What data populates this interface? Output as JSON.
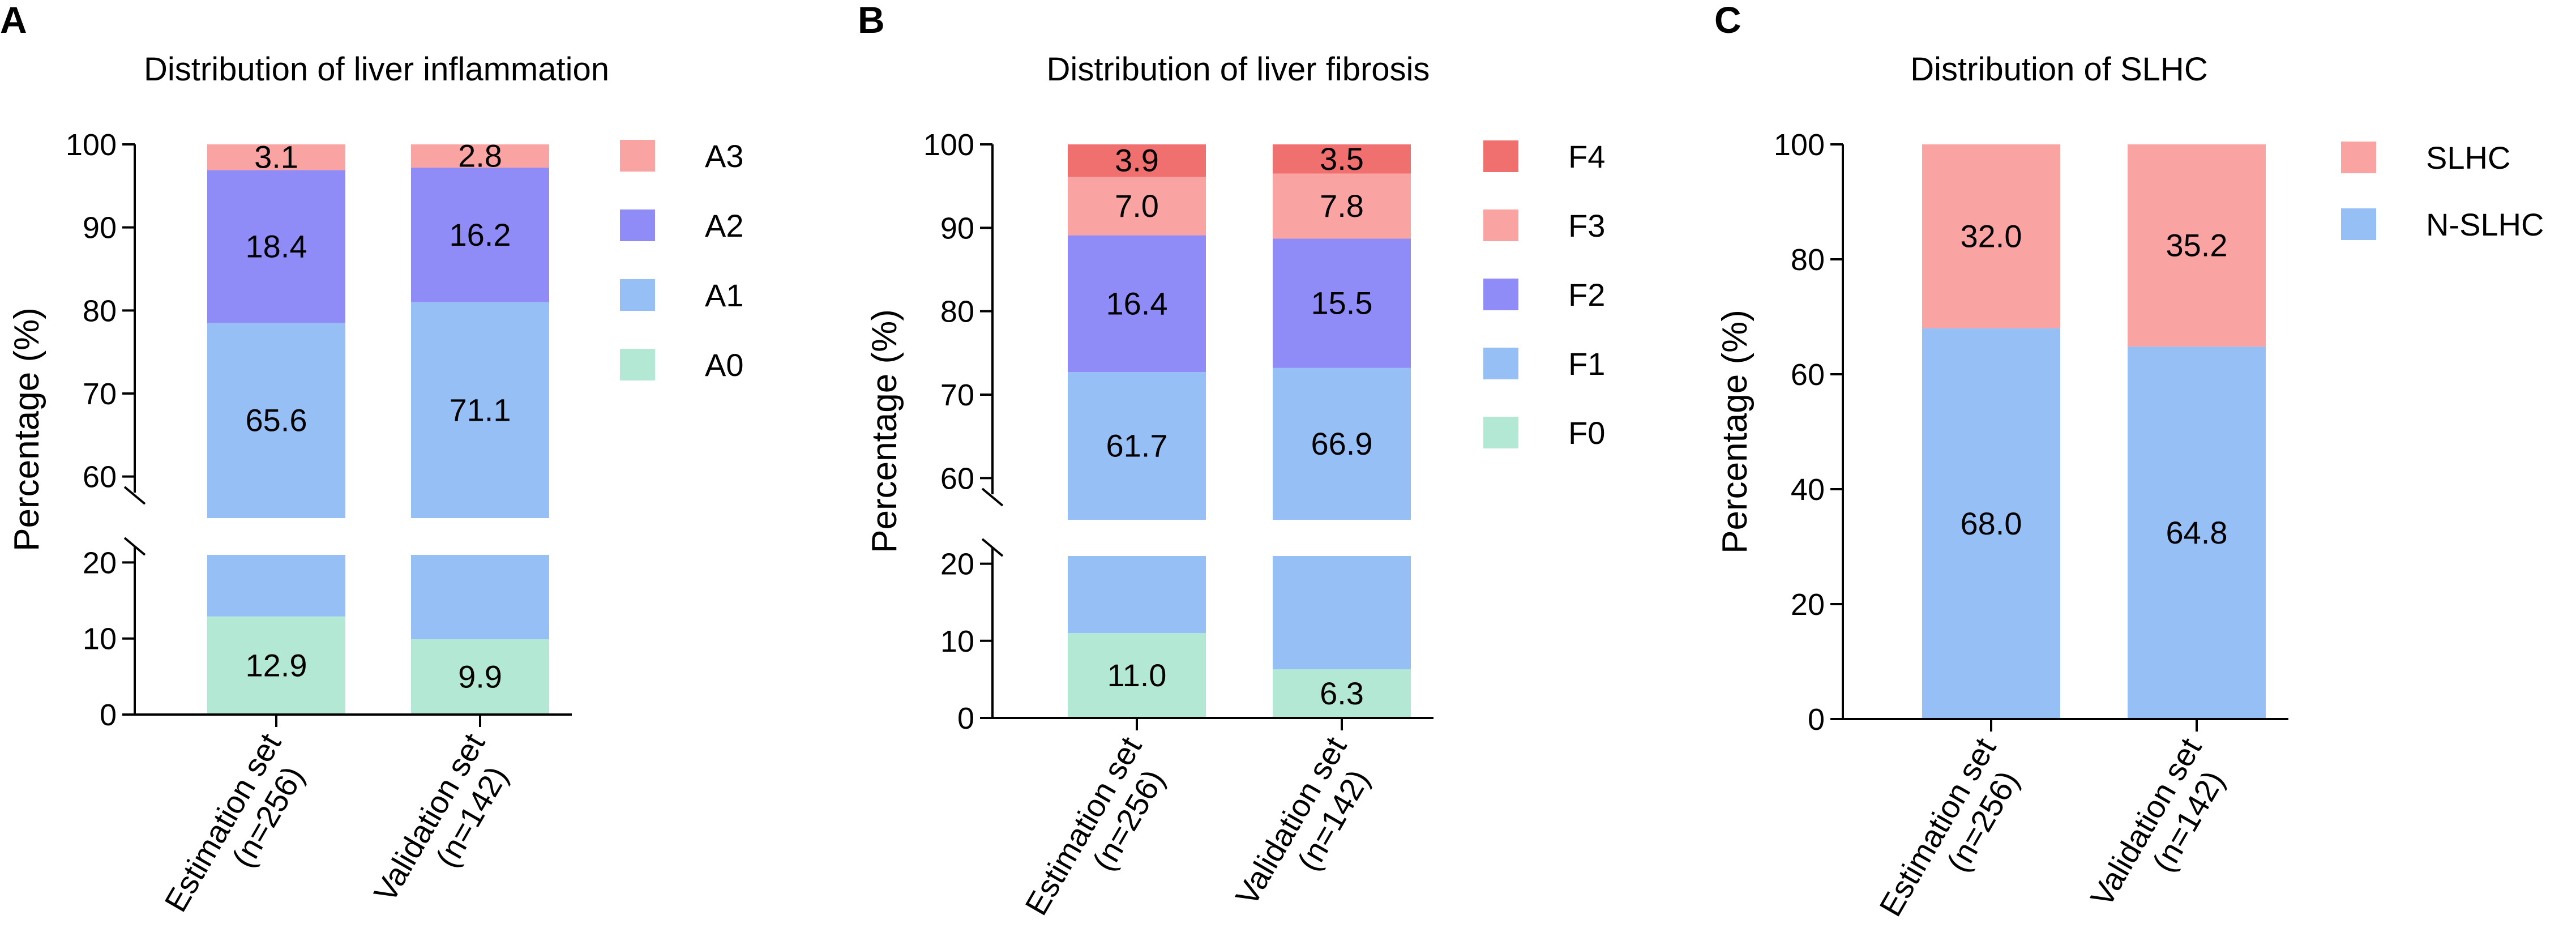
{
  "chart_data": [
    {
      "panel": "A",
      "type": "bar",
      "stacked": true,
      "title": "Distribution of liver inflammation",
      "ylabel": "Percentage (%)",
      "xlabel": "",
      "y_axis": {
        "broken": true,
        "lower_ticks": [
          0,
          10,
          20
        ],
        "upper_ticks": [
          60,
          70,
          80,
          90,
          100
        ]
      },
      "categories": [
        {
          "line1": "Estimation set",
          "line2": "(n=256)"
        },
        {
          "line1": "Validation set",
          "line2": "(n=142)"
        }
      ],
      "series": [
        {
          "name": "A0",
          "color": "#b3e8d5",
          "values": [
            12.9,
            9.9
          ]
        },
        {
          "name": "A1",
          "color": "#96bff5",
          "values": [
            65.6,
            71.1
          ]
        },
        {
          "name": "A2",
          "color": "#908cf7",
          "values": [
            18.4,
            16.2
          ]
        },
        {
          "name": "A3",
          "color": "#f9a3a3",
          "values": [
            3.1,
            2.8
          ]
        }
      ],
      "value_labels": [
        [
          "12.9",
          "9.9"
        ],
        [
          "65.6",
          "71.1"
        ],
        [
          "18.4",
          "16.2"
        ],
        [
          "3.1",
          "2.8"
        ]
      ],
      "legend": "right"
    },
    {
      "panel": "B",
      "type": "bar",
      "stacked": true,
      "title": "Distribution of liver fibrosis",
      "ylabel": "Percentage (%)",
      "xlabel": "",
      "y_axis": {
        "broken": true,
        "lower_ticks": [
          0,
          10,
          20
        ],
        "upper_ticks": [
          60,
          70,
          80,
          90,
          100
        ]
      },
      "categories": [
        {
          "line1": "Estimation set",
          "line2": "(n=256)"
        },
        {
          "line1": "Validation set",
          "line2": "(n=142)"
        }
      ],
      "series": [
        {
          "name": "F0",
          "color": "#b3e8d5",
          "values": [
            11.0,
            6.3
          ]
        },
        {
          "name": "F1",
          "color": "#96bff5",
          "values": [
            61.7,
            66.9
          ]
        },
        {
          "name": "F2",
          "color": "#908cf7",
          "values": [
            16.4,
            15.5
          ]
        },
        {
          "name": "F3",
          "color": "#f9a3a3",
          "values": [
            7.0,
            7.8
          ]
        },
        {
          "name": "F4",
          "color": "#f07070",
          "values": [
            3.9,
            3.5
          ]
        }
      ],
      "value_labels": [
        [
          "11.0",
          "6.3"
        ],
        [
          "61.7",
          "66.9"
        ],
        [
          "16.4",
          "15.5"
        ],
        [
          "7.0",
          "7.8"
        ],
        [
          "3.9",
          "3.5"
        ]
      ],
      "legend": "right"
    },
    {
      "panel": "C",
      "type": "bar",
      "stacked": true,
      "title": "Distribution of SLHC",
      "ylabel": "Percentage (%)",
      "xlabel": "",
      "y_axis": {
        "broken": false,
        "ticks": [
          0,
          20,
          40,
          60,
          80,
          100
        ],
        "ylim": [
          0,
          100
        ]
      },
      "categories": [
        {
          "line1": "Estimation set",
          "line2": "(n=256)"
        },
        {
          "line1": "Validation set",
          "line2": "(n=142)"
        }
      ],
      "series": [
        {
          "name": "N-SLHC",
          "color": "#96bff5",
          "values": [
            68.0,
            64.8
          ]
        },
        {
          "name": "SLHC",
          "color": "#f9a3a3",
          "values": [
            32.0,
            35.2
          ]
        }
      ],
      "value_labels": [
        [
          "68.0",
          "64.8"
        ],
        [
          "32.0",
          "35.2"
        ]
      ],
      "legend": "right"
    }
  ]
}
